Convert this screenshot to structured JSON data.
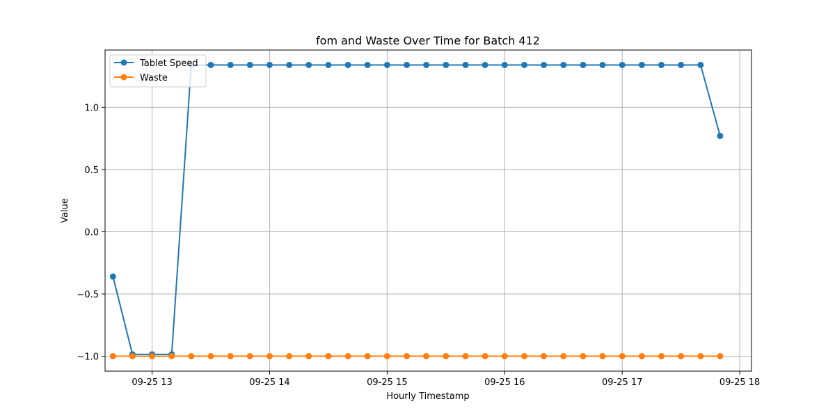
{
  "chart_data": {
    "type": "line",
    "title": "fom and Waste Over Time for Batch 412",
    "xlabel": "Hourly Timestamp",
    "ylabel": "Value",
    "x_tick_labels": [
      "09-25 13",
      "09-25 14",
      "09-25 15",
      "09-25 16",
      "09-25 17",
      "09-25 18"
    ],
    "x_tick_hours": [
      13,
      14,
      15,
      16,
      17,
      18
    ],
    "x_hours": [
      12.667,
      12.833,
      13.0,
      13.167,
      13.333,
      13.5,
      13.667,
      13.833,
      14.0,
      14.167,
      14.333,
      14.5,
      14.667,
      14.833,
      15.0,
      15.167,
      15.333,
      15.5,
      15.667,
      15.833,
      16.0,
      16.167,
      16.333,
      16.5,
      16.667,
      16.833,
      17.0,
      17.167,
      17.333,
      17.5,
      17.667,
      17.833
    ],
    "y_ticks": [
      -1.0,
      -0.5,
      0.0,
      0.5,
      1.0
    ],
    "y_tick_labels": [
      "−1.0",
      "−0.5",
      "0.0",
      "0.5",
      "1.0"
    ],
    "xlim": [
      12.6,
      18.1
    ],
    "ylim": [
      -1.12,
      1.46
    ],
    "grid": true,
    "legend_position": "top-left",
    "series": [
      {
        "name": "Tablet Speed",
        "color": "#1f77b4",
        "values": [
          -0.36,
          -0.985,
          -0.985,
          -0.985,
          1.34,
          1.34,
          1.34,
          1.34,
          1.34,
          1.34,
          1.34,
          1.34,
          1.34,
          1.34,
          1.34,
          1.34,
          1.34,
          1.34,
          1.34,
          1.34,
          1.34,
          1.34,
          1.34,
          1.34,
          1.34,
          1.34,
          1.34,
          1.34,
          1.34,
          1.34,
          1.34,
          0.77
        ]
      },
      {
        "name": "Waste",
        "color": "#ff7f0e",
        "values": [
          -1.0,
          -1.0,
          -1.0,
          -1.0,
          -1.0,
          -1.0,
          -1.0,
          -1.0,
          -1.0,
          -1.0,
          -1.0,
          -1.0,
          -1.0,
          -1.0,
          -1.0,
          -1.0,
          -1.0,
          -1.0,
          -1.0,
          -1.0,
          -1.0,
          -1.0,
          -1.0,
          -1.0,
          -1.0,
          -1.0,
          -1.0,
          -1.0,
          -1.0,
          -1.0,
          -1.0,
          -1.0
        ]
      }
    ]
  }
}
